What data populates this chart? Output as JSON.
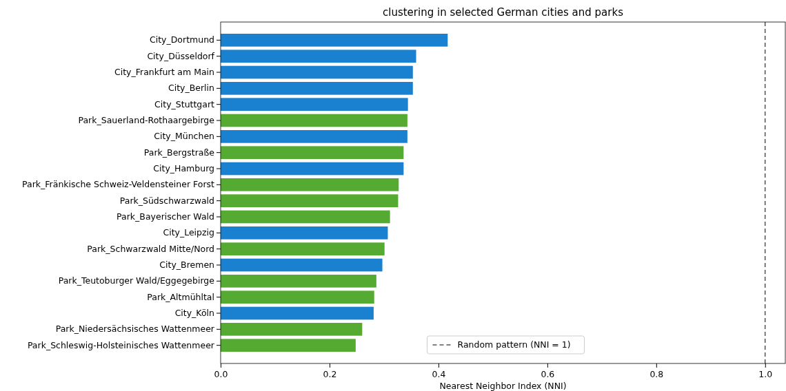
{
  "chart_data": {
    "type": "bar",
    "orientation": "horizontal",
    "title": "clustering in selected German cities and parks",
    "xlabel": "Nearest Neighbor Index (NNI)",
    "categories": [
      "City_Dortmund",
      "City_Düsseldorf",
      "City_Frankfurt am Main",
      "City_Berlin",
      "City_Stuttgart",
      "Park_Sauerland-Rothaargebirge",
      "City_München",
      "Park_Bergstraße",
      "City_Hamburg",
      "Park_Fränkische Schweiz-Veldensteiner Forst",
      "Park_Südschwarzwald",
      "Park_Bayerischer Wald",
      "City_Leipzig",
      "Park_Schwarzwald Mitte/Nord",
      "City_Bremen",
      "Park_Teutoburger Wald/Eggegebirge",
      "Park_Altmühltal",
      "City_Köln",
      "Park_Niedersächsisches Wattenmeer",
      "Park_Schleswig-Holsteinisches Wattenmeer"
    ],
    "values": [
      0.417,
      0.359,
      0.353,
      0.353,
      0.344,
      0.343,
      0.343,
      0.336,
      0.336,
      0.327,
      0.326,
      0.311,
      0.307,
      0.301,
      0.297,
      0.286,
      0.282,
      0.281,
      0.26,
      0.248
    ],
    "colors": [
      "#1a80d0",
      "#1a80d0",
      "#1a80d0",
      "#1a80d0",
      "#1a80d0",
      "#55ab31",
      "#1a80d0",
      "#55ab31",
      "#1a80d0",
      "#55ab31",
      "#55ab31",
      "#55ab31",
      "#1a80d0",
      "#55ab31",
      "#1a80d0",
      "#55ab31",
      "#55ab31",
      "#1a80d0",
      "#55ab31",
      "#55ab31"
    ],
    "xlim": [
      0,
      1.037
    ],
    "xticks": [
      {
        "value": 0,
        "label": "0.0"
      },
      {
        "value": 0.2,
        "label": "0.2"
      },
      {
        "value": 0.4,
        "label": "0.4"
      },
      {
        "value": 0.6,
        "label": "0.6"
      },
      {
        "value": 0.8,
        "label": "0.8"
      },
      {
        "value": 1,
        "label": "1.0"
      }
    ],
    "ref_lines": [
      {
        "axis": "x",
        "value": 1,
        "label": "Random pattern (NNI = 1)",
        "color": "#000000",
        "line_style": "dashed"
      }
    ],
    "legend": "bottom",
    "grid": false
  }
}
